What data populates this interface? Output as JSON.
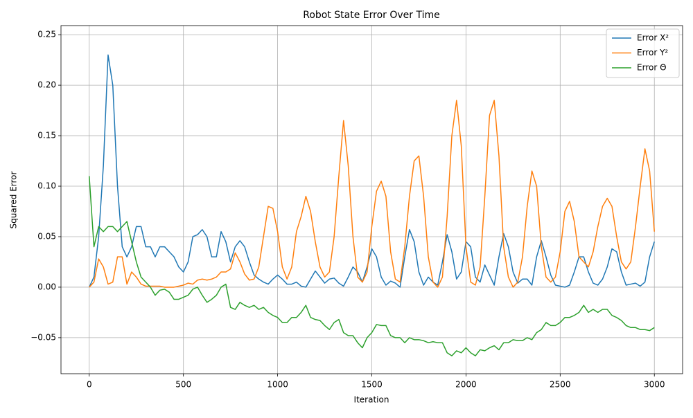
{
  "chart_data": {
    "type": "line",
    "title": "Robot State Error Over Time",
    "x_label": "Iteration",
    "y_label": "Squared Error",
    "x": [
      0,
      25,
      50,
      75,
      100,
      125,
      150,
      175,
      200,
      225,
      250,
      275,
      300,
      325,
      350,
      375,
      400,
      425,
      450,
      475,
      500,
      525,
      550,
      575,
      600,
      625,
      650,
      675,
      700,
      725,
      750,
      775,
      800,
      825,
      850,
      875,
      900,
      925,
      950,
      975,
      1000,
      1025,
      1050,
      1075,
      1100,
      1125,
      1150,
      1175,
      1200,
      1225,
      1250,
      1275,
      1300,
      1325,
      1350,
      1375,
      1400,
      1425,
      1450,
      1475,
      1500,
      1525,
      1550,
      1575,
      1600,
      1625,
      1650,
      1675,
      1700,
      1725,
      1750,
      1775,
      1800,
      1825,
      1850,
      1875,
      1900,
      1925,
      1950,
      1975,
      2000,
      2025,
      2050,
      2075,
      2100,
      2125,
      2150,
      2175,
      2200,
      2225,
      2250,
      2275,
      2300,
      2325,
      2350,
      2375,
      2400,
      2425,
      2450,
      2475,
      2500,
      2525,
      2550,
      2575,
      2600,
      2625,
      2650,
      2675,
      2700,
      2725,
      2750,
      2775,
      2800,
      2825,
      2850,
      2875,
      2900,
      2925,
      2950,
      2975,
      3000
    ],
    "series": [
      {
        "name": "Error X²",
        "color": "#1f77b4",
        "values": [
          0.0,
          0.01,
          0.05,
          0.12,
          0.23,
          0.2,
          0.1,
          0.04,
          0.03,
          0.04,
          0.06,
          0.06,
          0.04,
          0.04,
          0.03,
          0.04,
          0.04,
          0.035,
          0.03,
          0.02,
          0.015,
          0.025,
          0.05,
          0.052,
          0.057,
          0.05,
          0.03,
          0.03,
          0.055,
          0.045,
          0.025,
          0.04,
          0.046,
          0.04,
          0.025,
          0.012,
          0.008,
          0.005,
          0.003,
          0.008,
          0.012,
          0.008,
          0.003,
          0.003,
          0.005,
          0.001,
          0.0,
          0.008,
          0.016,
          0.01,
          0.004,
          0.008,
          0.009,
          0.004,
          0.001,
          0.01,
          0.02,
          0.015,
          0.005,
          0.02,
          0.038,
          0.03,
          0.01,
          0.002,
          0.006,
          0.004,
          0.0,
          0.03,
          0.057,
          0.045,
          0.015,
          0.002,
          0.01,
          0.005,
          0.002,
          0.025,
          0.052,
          0.035,
          0.008,
          0.015,
          0.045,
          0.04,
          0.01,
          0.005,
          0.022,
          0.012,
          0.002,
          0.03,
          0.053,
          0.04,
          0.015,
          0.004,
          0.008,
          0.008,
          0.002,
          0.03,
          0.046,
          0.03,
          0.012,
          0.002,
          0.001,
          0.0,
          0.002,
          0.015,
          0.03,
          0.03,
          0.015,
          0.004,
          0.002,
          0.008,
          0.02,
          0.038,
          0.035,
          0.015,
          0.002,
          0.003,
          0.004,
          0.001,
          0.005,
          0.03,
          0.045
        ]
      },
      {
        "name": "Error Y²",
        "color": "#ff7f0e",
        "values": [
          0.0,
          0.005,
          0.028,
          0.02,
          0.003,
          0.005,
          0.03,
          0.03,
          0.003,
          0.015,
          0.01,
          0.003,
          0.001,
          0.001,
          0.001,
          0.001,
          0.0,
          0.0,
          0.0,
          0.001,
          0.002,
          0.004,
          0.003,
          0.007,
          0.008,
          0.007,
          0.008,
          0.01,
          0.015,
          0.015,
          0.018,
          0.034,
          0.025,
          0.013,
          0.007,
          0.008,
          0.02,
          0.05,
          0.08,
          0.078,
          0.055,
          0.02,
          0.008,
          0.02,
          0.055,
          0.07,
          0.09,
          0.075,
          0.045,
          0.02,
          0.01,
          0.015,
          0.05,
          0.11,
          0.165,
          0.12,
          0.05,
          0.01,
          0.005,
          0.015,
          0.06,
          0.095,
          0.105,
          0.09,
          0.035,
          0.008,
          0.005,
          0.04,
          0.09,
          0.125,
          0.13,
          0.09,
          0.03,
          0.005,
          0.0,
          0.01,
          0.07,
          0.15,
          0.185,
          0.14,
          0.04,
          0.005,
          0.002,
          0.02,
          0.09,
          0.17,
          0.185,
          0.13,
          0.04,
          0.01,
          0.0,
          0.005,
          0.03,
          0.08,
          0.115,
          0.1,
          0.04,
          0.01,
          0.005,
          0.01,
          0.035,
          0.075,
          0.085,
          0.065,
          0.03,
          0.025,
          0.02,
          0.035,
          0.06,
          0.08,
          0.088,
          0.08,
          0.05,
          0.025,
          0.018,
          0.025,
          0.06,
          0.1,
          0.137,
          0.115,
          0.055
        ]
      },
      {
        "name": "Error Θ",
        "color": "#2ca02c",
        "values": [
          0.11,
          0.04,
          0.06,
          0.055,
          0.06,
          0.06,
          0.055,
          0.06,
          0.065,
          0.045,
          0.025,
          0.01,
          0.005,
          0.0,
          -0.008,
          -0.003,
          -0.002,
          -0.005,
          -0.012,
          -0.012,
          -0.01,
          -0.008,
          -0.002,
          0.0,
          -0.008,
          -0.015,
          -0.012,
          -0.008,
          0.0,
          0.003,
          -0.02,
          -0.022,
          -0.015,
          -0.018,
          -0.02,
          -0.018,
          -0.022,
          -0.02,
          -0.025,
          -0.028,
          -0.03,
          -0.035,
          -0.035,
          -0.03,
          -0.03,
          -0.025,
          -0.018,
          -0.03,
          -0.032,
          -0.033,
          -0.038,
          -0.042,
          -0.035,
          -0.032,
          -0.045,
          -0.048,
          -0.048,
          -0.055,
          -0.06,
          -0.05,
          -0.045,
          -0.037,
          -0.038,
          -0.038,
          -0.048,
          -0.05,
          -0.05,
          -0.055,
          -0.05,
          -0.052,
          -0.052,
          -0.053,
          -0.055,
          -0.054,
          -0.055,
          -0.055,
          -0.065,
          -0.068,
          -0.063,
          -0.065,
          -0.06,
          -0.065,
          -0.068,
          -0.062,
          -0.063,
          -0.06,
          -0.058,
          -0.062,
          -0.055,
          -0.055,
          -0.052,
          -0.053,
          -0.053,
          -0.05,
          -0.052,
          -0.045,
          -0.042,
          -0.035,
          -0.038,
          -0.038,
          -0.035,
          -0.03,
          -0.03,
          -0.028,
          -0.025,
          -0.018,
          -0.025,
          -0.022,
          -0.025,
          -0.022,
          -0.022,
          -0.028,
          -0.03,
          -0.033,
          -0.038,
          -0.04,
          -0.04,
          -0.042,
          -0.042,
          -0.043,
          -0.04
        ]
      }
    ],
    "xlim": [
      -150,
      3150
    ],
    "ylim": [
      -0.0857,
      0.259
    ],
    "xticks": [
      0,
      500,
      1000,
      1500,
      2000,
      2500,
      3000
    ],
    "yticks": [
      {
        "value": -0.05,
        "label": "−0.05"
      },
      {
        "value": 0,
        "label": "0.00"
      },
      {
        "value": 0.05,
        "label": "0.05"
      },
      {
        "value": 0.1,
        "label": "0.10"
      },
      {
        "value": 0.15,
        "label": "0.15"
      },
      {
        "value": 0.2,
        "label": "0.20"
      },
      {
        "value": 0.25,
        "label": "0.25"
      }
    ],
    "grid": true,
    "legend": "upper-right"
  }
}
